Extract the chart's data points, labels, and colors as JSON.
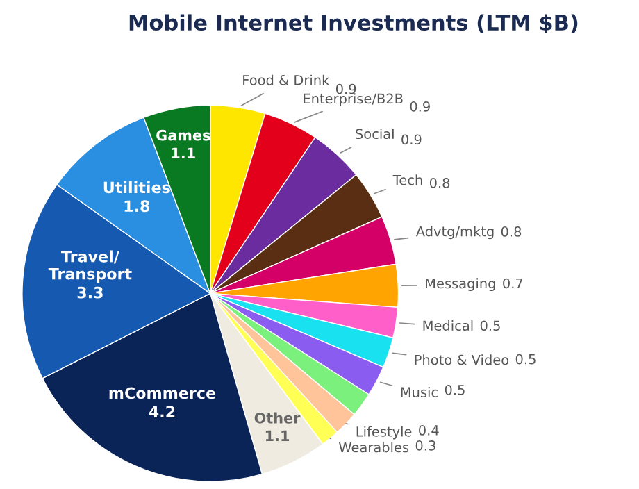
{
  "chart_data": {
    "type": "pie",
    "title": "Mobile Internet Investments (LTM $B)",
    "categories": [
      "Food & Drink",
      "Enterprise/B2B",
      "Social",
      "Tech",
      "Advtg/mktg",
      "Messaging",
      "Medical",
      "Photo & Video",
      "Music",
      null,
      "Lifestyle",
      "Wearables",
      "Other",
      "mCommerce",
      "Travel/\nTransport",
      "Utilities",
      "Games"
    ],
    "values": [
      0.9,
      0.9,
      0.9,
      0.8,
      0.8,
      0.7,
      0.5,
      0.5,
      0.5,
      0.4,
      0.4,
      0.3,
      1.1,
      4.2,
      3.3,
      1.8,
      1.1
    ],
    "colors": [
      "#ffe600",
      "#e3001b",
      "#6a2c9e",
      "#5a2e12",
      "#d40068",
      "#ffa400",
      "#ff5fc8",
      "#19e1f0",
      "#8a5cf0",
      "#7cf07c",
      "#ffc49a",
      "#ffff55",
      "#efebe0",
      "#0b2458",
      "#1559b0",
      "#2a8fe0",
      "#0a7a22"
    ],
    "value_labels": [
      "0.9",
      "0.9",
      "0.9",
      "0.8",
      "0.8",
      "0.7",
      "0.5",
      "0.5",
      "0.5",
      null,
      "0.4",
      "0.3",
      "1.1",
      "4.2",
      "3.3",
      "1.8",
      "1.1"
    ]
  }
}
